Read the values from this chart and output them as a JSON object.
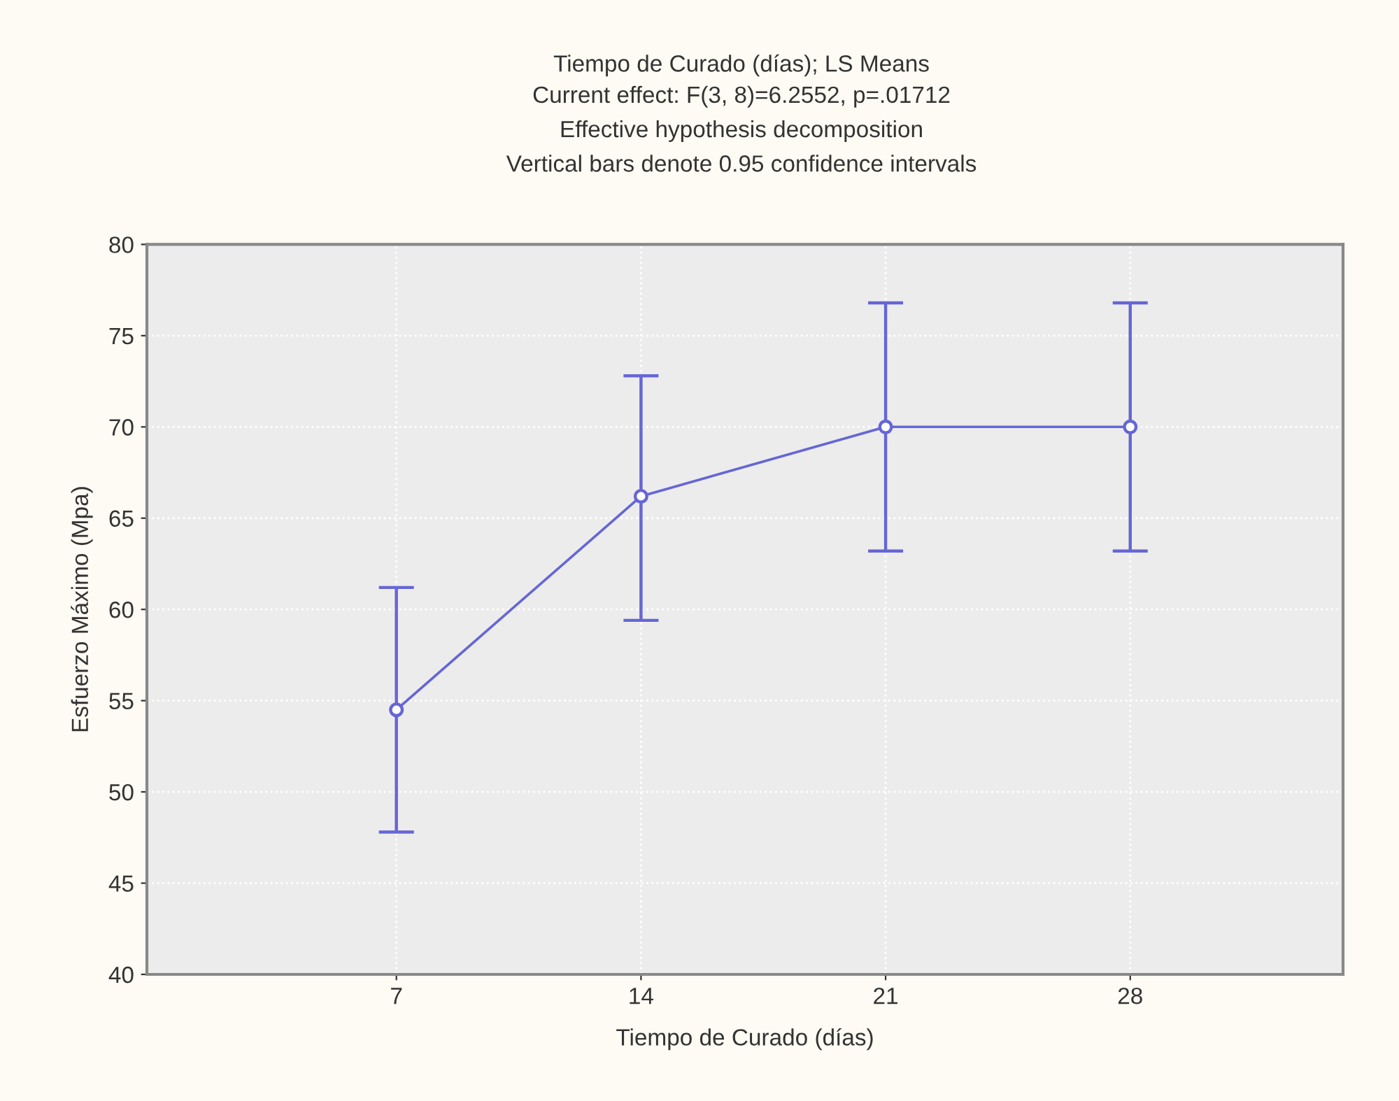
{
  "chart_data": {
    "type": "line",
    "title": "Tiempo de Curado (días); LS Means",
    "subtitle": "Current effect: F(3, 8)=6.2552, p=.01712\nEffective hypothesis decomposition\nVertical bars denote 0.95 confidence intervals",
    "xlabel": "Tiempo de Curado (días)",
    "ylabel": "Esfuerzo Máximo (Mpa)",
    "categories": [
      "7",
      "14",
      "21",
      "28"
    ],
    "series": [
      {
        "color": "#6666d6",
        "values": [
          54.5,
          66.2,
          70.0,
          70.0
        ],
        "errors": [
          [
            47.8,
            61.2
          ],
          [
            59.4,
            72.8
          ],
          [
            63.2,
            76.8
          ],
          [
            63.2,
            76.8
          ]
        ]
      }
    ],
    "ylim": [
      40,
      80
    ],
    "yticks": [
      40,
      45,
      50,
      55,
      60,
      65,
      70,
      75,
      80
    ],
    "grid": true,
    "marker": "circle",
    "line_style": "solid"
  }
}
